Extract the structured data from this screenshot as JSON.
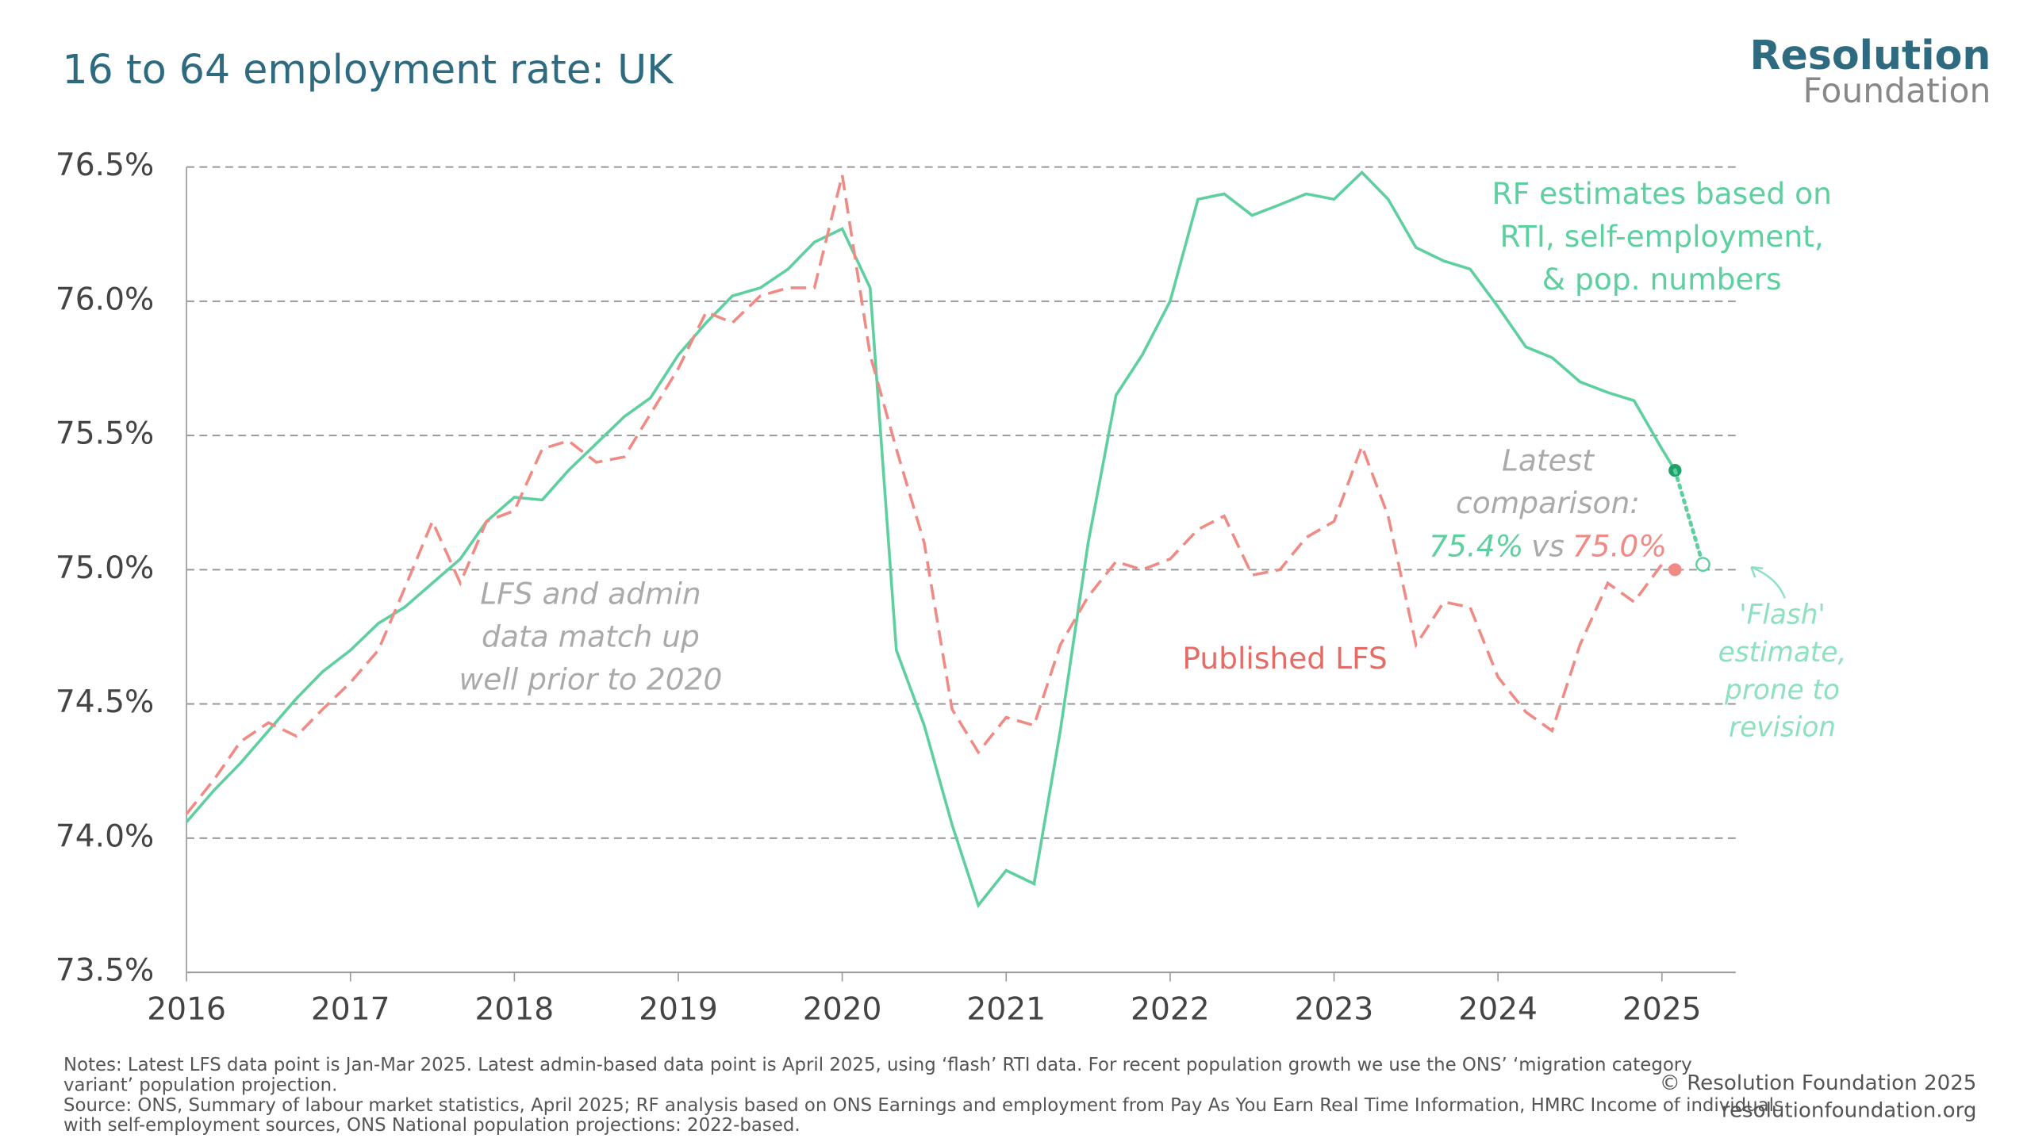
{
  "chart_data": {
    "type": "line",
    "title": "16 to 64 employment rate: UK",
    "logo": {
      "line1": "Resolution",
      "line2": "Foundation"
    },
    "x": [
      2016,
      2016.17,
      2016.33,
      2016.5,
      2016.67,
      2016.83,
      2017,
      2017.17,
      2017.33,
      2017.5,
      2017.67,
      2017.83,
      2018,
      2018.17,
      2018.33,
      2018.5,
      2018.67,
      2018.83,
      2019,
      2019.17,
      2019.33,
      2019.5,
      2019.67,
      2019.83,
      2020,
      2020.17,
      2020.33,
      2020.5,
      2020.67,
      2020.83,
      2021,
      2021.17,
      2021.33,
      2021.5,
      2021.67,
      2021.83,
      2022,
      2022.17,
      2022.33,
      2022.5,
      2022.67,
      2022.83,
      2023,
      2023.17,
      2023.33,
      2023.5,
      2023.67,
      2023.83,
      2024,
      2024.17,
      2024.33,
      2024.5,
      2024.67,
      2024.83,
      2025,
      2025.08
    ],
    "series": [
      {
        "name": "RF estimates based on RTI, self-employment, & pop. numbers",
        "color": "#5ecf9e",
        "dash": false,
        "values": [
          74.06,
          74.18,
          74.28,
          74.4,
          74.52,
          74.62,
          74.7,
          74.8,
          74.86,
          74.95,
          75.04,
          75.18,
          75.27,
          75.26,
          75.37,
          75.47,
          75.57,
          75.64,
          75.8,
          75.92,
          76.02,
          76.05,
          76.12,
          76.22,
          76.27,
          76.05,
          74.7,
          74.42,
          74.05,
          73.75,
          73.88,
          73.83,
          74.4,
          75.1,
          75.65,
          75.8,
          76,
          76.38,
          76.4,
          76.32,
          76.36,
          76.4,
          76.38,
          76.48,
          76.38,
          76.2,
          76.15,
          76.12,
          75.98,
          75.83,
          75.79,
          75.7,
          75.66,
          75.63,
          75.45,
          75.37
        ]
      },
      {
        "name": "Published LFS",
        "color": "#f08a85",
        "dash": true,
        "values": [
          74.09,
          74.22,
          74.36,
          74.43,
          74.38,
          74.48,
          74.58,
          74.7,
          74.93,
          75.18,
          74.95,
          75.18,
          75.22,
          75.45,
          75.48,
          75.4,
          75.42,
          75.58,
          75.75,
          75.96,
          75.92,
          76.02,
          76.05,
          76.05,
          76.47,
          75.8,
          75.45,
          75.1,
          74.48,
          74.32,
          74.45,
          74.42,
          74.72,
          74.9,
          75.03,
          75,
          75.04,
          75.15,
          75.2,
          74.98,
          75,
          75.12,
          75.18,
          75.46,
          75.2,
          74.72,
          74.88,
          74.86,
          74.6,
          74.47,
          74.4,
          74.72,
          74.95,
          74.88,
          75.02,
          75
        ]
      }
    ],
    "flash_point": {
      "x": 2025.25,
      "y": 75.02
    },
    "xlim": [
      2016,
      2025.45
    ],
    "xticks": [
      2016,
      2017,
      2018,
      2019,
      2020,
      2021,
      2022,
      2023,
      2024,
      2025
    ],
    "ylim": [
      73.5,
      76.5
    ],
    "yticks": [
      {
        "value": 73.5,
        "label": "73.5%"
      },
      {
        "value": 74,
        "label": "74.0%"
      },
      {
        "value": 74.5,
        "label": "74.5%"
      },
      {
        "value": 75,
        "label": "75.0%"
      },
      {
        "value": 75.5,
        "label": "75.5%"
      },
      {
        "value": 76,
        "label": "76.0%"
      },
      {
        "value": 76.5,
        "label": "76.5%"
      }
    ],
    "grid": true,
    "annotations": {
      "rf": [
        "RF estimates based on",
        "RTI, self-employment,",
        "& pop. numbers"
      ],
      "lfs": "Published LFS",
      "match": [
        "LFS and admin",
        "data match up",
        "well prior to 2020"
      ],
      "latest": [
        "Latest",
        "comparison:"
      ],
      "latest_rf": "75.4%",
      "latest_vs": "vs",
      "latest_lfs": "75.0%",
      "flash": [
        "'Flash'",
        "estimate,",
        "prone to",
        "revision"
      ]
    },
    "notes": [
      "Notes: Latest LFS data point is Jan-Mar 2025. Latest admin-based data point is April 2025, using ‘flash’ RTI data. For recent population growth we use the ONS’ ‘migration category",
      "variant’ population projection.",
      "Source: ONS, Summary of labour market statistics, April 2025; RF analysis based on ONS Earnings and employment from Pay As You Earn Real Time Information, HMRC Income of individuals",
      "with self-employment sources, ONS National population projections: 2022-based."
    ],
    "copyright": [
      "© Resolution Foundation 2025",
      "resolutionfoundation.org"
    ]
  }
}
